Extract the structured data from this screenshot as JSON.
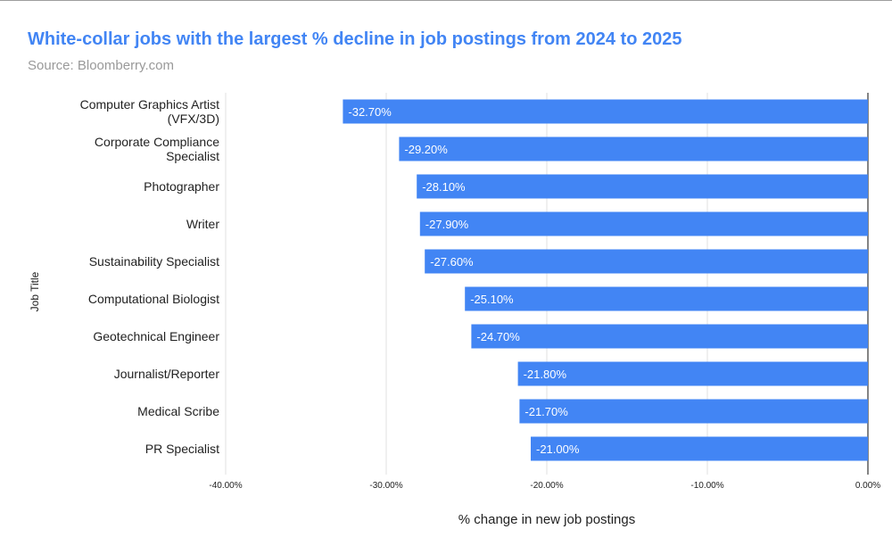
{
  "title": "White-collar jobs with the largest % decline in job postings from 2024 to 2025",
  "subtitle": "Source: Bloomberry.com",
  "chart_data": {
    "type": "bar",
    "orientation": "horizontal",
    "categories": [
      [
        "Computer Graphics Artist",
        "(VFX/3D)"
      ],
      [
        "Corporate Compliance",
        "Specialist"
      ],
      [
        "Photographer"
      ],
      [
        "Writer"
      ],
      [
        "Sustainability Specialist"
      ],
      [
        "Computational Biologist"
      ],
      [
        "Geotechnical Engineer"
      ],
      [
        "Journalist/Reporter"
      ],
      [
        "Medical Scribe"
      ],
      [
        "PR Specialist"
      ]
    ],
    "values": [
      -32.7,
      -29.2,
      -28.1,
      -27.9,
      -27.6,
      -25.1,
      -24.7,
      -21.8,
      -21.7,
      -21.0
    ],
    "value_labels": [
      "-32.70%",
      "-29.20%",
      "-28.10%",
      "-27.90%",
      "-27.60%",
      "-25.10%",
      "-24.70%",
      "-21.80%",
      "-21.70%",
      "-21.00%"
    ],
    "xlabel": "% change in new job postings",
    "ylabel": "Job Title",
    "xlim": [
      -40,
      0
    ],
    "xticks": [
      -40,
      -30,
      -20,
      -10,
      0
    ],
    "xtick_labels": [
      "-40.00%",
      "-30.00%",
      "-20.00%",
      "-10.00%",
      "0.00%"
    ],
    "grid": true,
    "colors": {
      "bar": "#4285f4",
      "bar_label": "#ffffff",
      "title": "#4285f4",
      "subtitle": "#999999",
      "grid": "#e0e0e0",
      "zero_line": "#333333"
    }
  }
}
